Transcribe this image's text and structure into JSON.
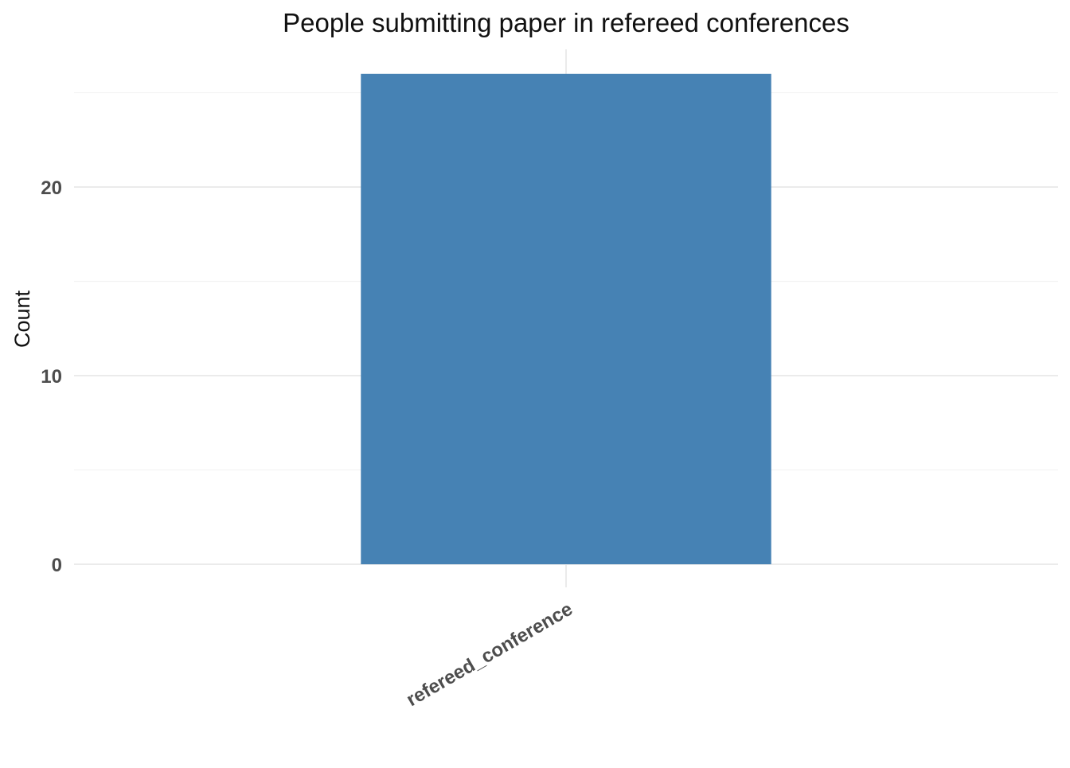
{
  "chart_data": {
    "type": "bar",
    "title": "People submitting paper in refereed conferences",
    "xlabel": "",
    "ylabel": "Count",
    "categories": [
      "refereed_conference"
    ],
    "values": [
      26
    ],
    "ylim": [
      0,
      27.3
    ],
    "yticks": [
      0,
      10,
      20
    ],
    "y_minor_ticks": [
      5,
      15,
      25
    ],
    "grid": true,
    "legend": "none",
    "colors": {
      "bar": "#4682B4",
      "grid_major": "#EBEBEB",
      "grid_minor": "#F3F3F3",
      "tick_text": "#4D4D4D",
      "title_text": "#111111"
    }
  }
}
